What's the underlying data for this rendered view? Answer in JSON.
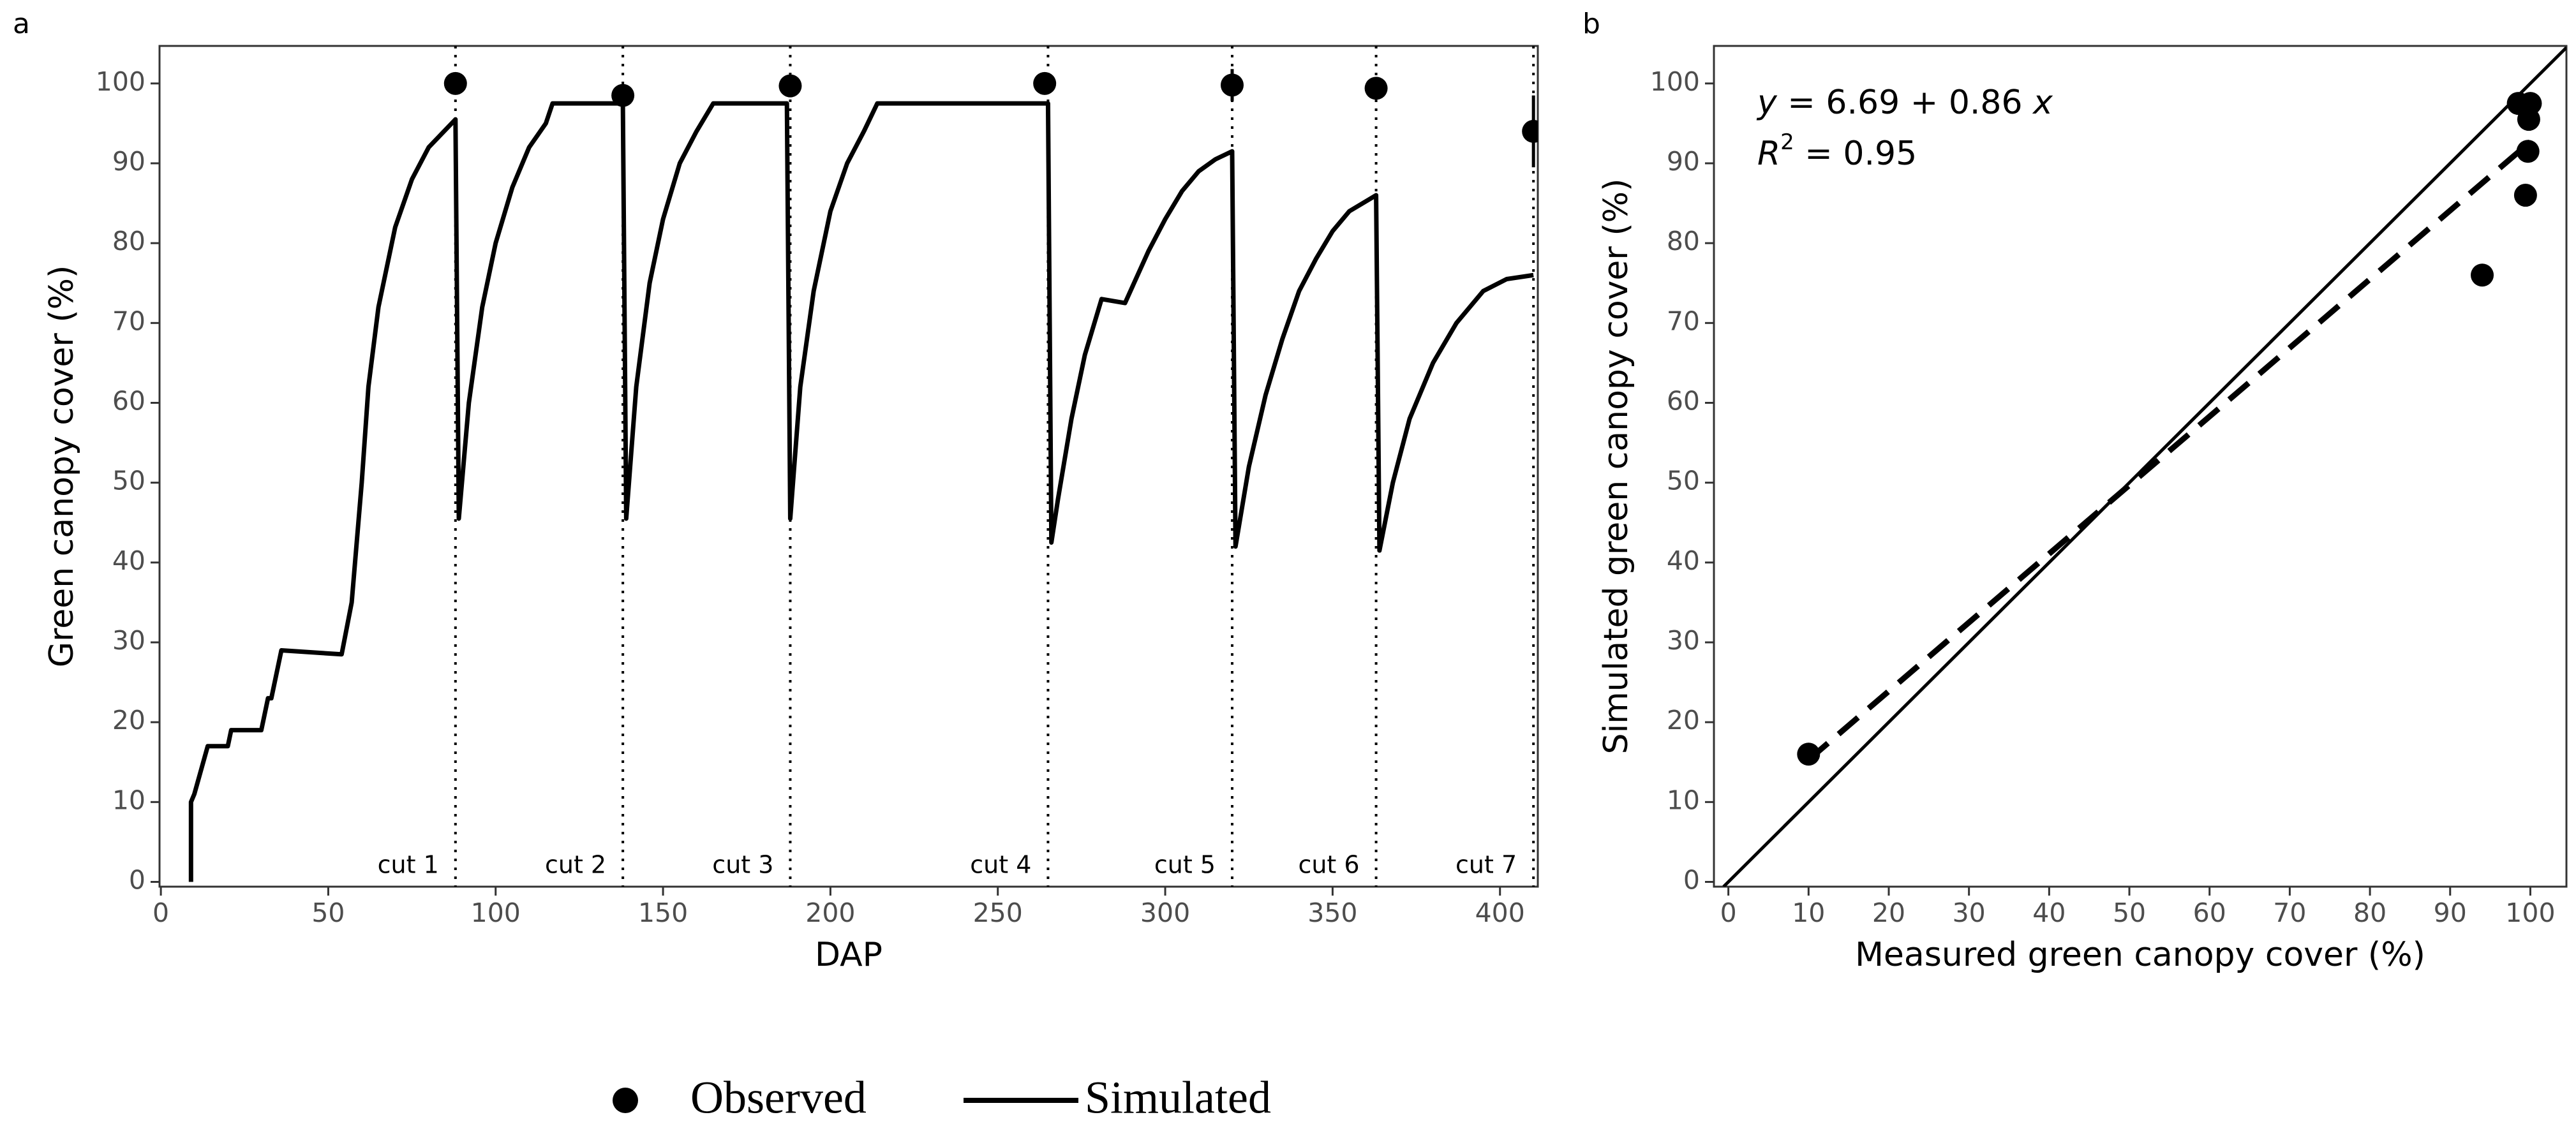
{
  "chart_data": [
    {
      "type": "line",
      "panel_label": "a",
      "xlabel": "DAP",
      "ylabel": "Green canopy cover (%)",
      "xlim": [
        -0.4,
        411.3
      ],
      "ylim": [
        -0.6,
        104.7
      ],
      "xticks": [
        0,
        50,
        100,
        150,
        200,
        250,
        300,
        350,
        400
      ],
      "yticks": [
        0,
        10,
        20,
        30,
        40,
        50,
        60,
        70,
        80,
        90,
        100
      ],
      "grid": false,
      "series": [
        {
          "name": "Simulated",
          "type": "line",
          "color": "#000000",
          "x": [
            9,
            9,
            10,
            14,
            20,
            21,
            30,
            32,
            33,
            36,
            54,
            57,
            60,
            62,
            65,
            70,
            75,
            80,
            88,
            89,
            92,
            96,
            100,
            105,
            110,
            115,
            117,
            138,
            139,
            142,
            146,
            150,
            155,
            160,
            165,
            187,
            188,
            191,
            195,
            200,
            205,
            210,
            214,
            265,
            266,
            268,
            272,
            276,
            281,
            288,
            295,
            300,
            305,
            310,
            315,
            320,
            321,
            325,
            330,
            335,
            340,
            345,
            350,
            355,
            363,
            364,
            368,
            373,
            380,
            387,
            395,
            402,
            410
          ],
          "values": [
            0,
            10,
            11,
            17,
            17,
            19,
            19,
            23,
            23,
            29,
            28.5,
            35,
            50,
            62,
            72,
            82,
            88,
            92,
            95.5,
            45.5,
            60,
            72,
            80,
            87,
            92,
            95,
            97.5,
            97.5,
            45.5,
            62,
            75,
            83,
            90,
            94,
            97.5,
            97.5,
            45.5,
            62,
            74,
            84,
            90,
            94,
            97.5,
            97.5,
            42.5,
            48,
            58,
            66,
            73,
            72.5,
            79,
            83,
            86.5,
            89,
            90.5,
            91.5,
            42,
            52,
            61,
            68,
            74,
            78,
            81.5,
            84,
            86,
            41.5,
            50,
            58,
            65,
            70,
            74,
            75.5,
            76
          ]
        },
        {
          "name": "Observed",
          "type": "scatter",
          "color": "#000000",
          "x": [
            88,
            138,
            188,
            264,
            320,
            363,
            410
          ],
          "values": [
            100,
            98.5,
            99.7,
            100,
            99.8,
            99.4,
            94
          ],
          "errors": [
            0,
            0,
            0,
            0,
            2,
            0,
            4.5
          ]
        }
      ],
      "cuts": {
        "x": [
          88,
          138,
          188,
          265,
          320,
          363,
          410
        ],
        "labels": [
          "cut 1",
          "cut 2",
          "cut 3",
          "cut 4",
          "cut 5",
          "cut 6",
          "cut 7"
        ]
      }
    },
    {
      "type": "scatter",
      "panel_label": "b",
      "xlabel": "Measured green canopy cover (%)",
      "ylabel": "Simulated green canopy cover (%)",
      "xlim": [
        -1.8,
        104.5
      ],
      "ylim": [
        -0.6,
        104.7
      ],
      "xticks": [
        0,
        10,
        20,
        30,
        40,
        50,
        60,
        70,
        80,
        90,
        100
      ],
      "yticks": [
        0,
        10,
        20,
        30,
        40,
        50,
        60,
        70,
        80,
        90,
        100
      ],
      "grid": false,
      "color": "#000000",
      "x": [
        10,
        98.5,
        100,
        99.8,
        99.7,
        99.4,
        94
      ],
      "values": [
        16,
        97.5,
        97.5,
        95.5,
        91.5,
        86,
        76
      ],
      "regression": {
        "intercept": 6.69,
        "slope": 0.86,
        "x_range": [
          10,
          100
        ]
      },
      "equation": [
        "y",
        " = 6.69 + 0.86 ",
        "x"
      ],
      "r2": [
        "R",
        "2",
        " = 0.95"
      ]
    }
  ]
}
